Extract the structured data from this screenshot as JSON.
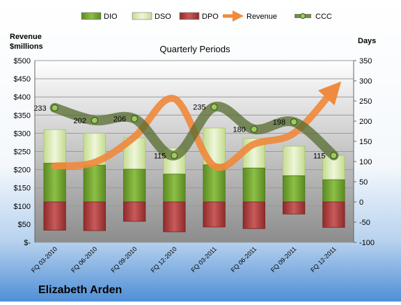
{
  "company": "Elizabeth Arden",
  "chart_data": {
    "type": "bar",
    "title": "Quarterly Periods",
    "ylabel_left": "Revenue\n$millions",
    "ylabel_right": "Days",
    "categories": [
      "FQ 03-2010",
      "FQ 06-2010",
      "FQ 09-2010",
      "FQ 12-2010",
      "FQ 03-2011",
      "FQ 06-2011",
      "FQ 09-2011",
      "FQ 12-2011"
    ],
    "left_axis": {
      "range": [
        0,
        500
      ],
      "ticks": [
        0,
        50,
        100,
        150,
        200,
        250,
        300,
        350,
        400,
        450,
        500
      ],
      "tick_labels": [
        "$-",
        "$50",
        "$100",
        "$150",
        "$200",
        "$250",
        "$300",
        "$350",
        "$400",
        "$450",
        "$500"
      ]
    },
    "right_axis": {
      "range": [
        -100,
        350
      ],
      "ticks": [
        -100,
        -50,
        0,
        50,
        100,
        150,
        200,
        250,
        300,
        350
      ],
      "tick_labels": [
        "-100",
        "-50",
        "0",
        "50",
        "100",
        "150",
        "200",
        "250",
        "300",
        "350"
      ]
    },
    "grid": true,
    "legend_position": "top",
    "series": [
      {
        "name": "DIO",
        "axis": "right",
        "kind": "stacked-bar",
        "color": "#6a9a2a",
        "values": [
          96,
          91,
          81,
          69,
          92,
          84,
          65,
          55
        ]
      },
      {
        "name": "DSO",
        "axis": "right",
        "kind": "stacked-bar",
        "color": "#d2e6a6",
        "values": [
          83,
          79,
          78,
          64,
          91,
          73,
          73,
          60
        ]
      },
      {
        "name": "DPO",
        "axis": "right",
        "kind": "bar-below-zero",
        "color": "#b03a3a",
        "values": [
          -70,
          -71,
          -48,
          -74,
          -62,
          -66,
          -30,
          -63
        ]
      },
      {
        "name": "Revenue",
        "axis": "left",
        "kind": "line-arrow",
        "color": "#ef8a3e",
        "values": [
          210,
          220,
          290,
          395,
          210,
          270,
          300,
          420
        ]
      },
      {
        "name": "CCC",
        "axis": "right",
        "kind": "line-markers",
        "color": "#556b2f",
        "values": [
          233,
          202,
          206,
          115,
          235,
          180,
          198,
          115
        ],
        "data_labels": [
          "233",
          "202",
          "206",
          "115",
          "235",
          "180",
          "198",
          "115"
        ]
      }
    ]
  }
}
